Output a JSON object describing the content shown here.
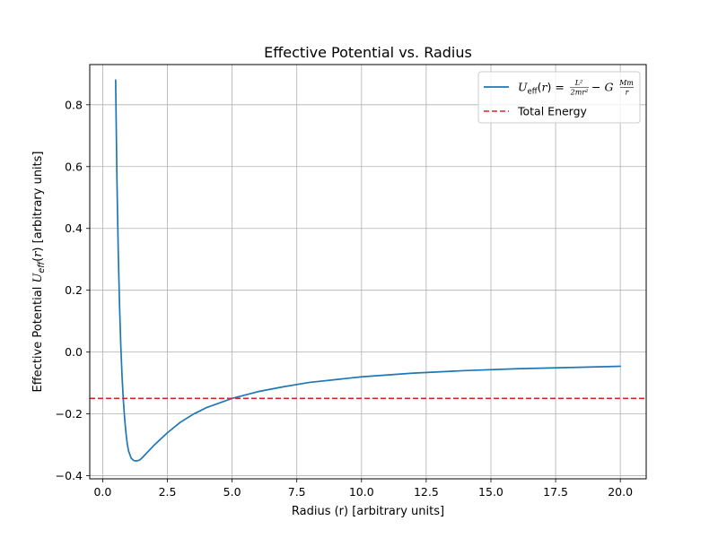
{
  "chart_data": {
    "type": "line",
    "title": "Effective Potential vs. Radius",
    "xlabel": "Radius (r) [arbitrary units]",
    "ylabel": "Effective Potential U_eff(r) [arbitrary units]",
    "xlim": [
      -0.5,
      21.0
    ],
    "ylim": [
      -0.41,
      0.93
    ],
    "x_ticks": [
      0.0,
      2.5,
      5.0,
      7.5,
      10.0,
      12.5,
      15.0,
      17.5,
      20.0
    ],
    "x_tick_labels": [
      "0.0",
      "2.5",
      "5.0",
      "7.5",
      "10.0",
      "12.5",
      "15.0",
      "17.5",
      "20.0"
    ],
    "y_ticks": [
      -0.4,
      -0.2,
      0.0,
      0.2,
      0.4,
      0.6,
      0.8
    ],
    "y_tick_labels": [
      "−0.4",
      "−0.2",
      "0.0",
      "0.2",
      "0.4",
      "0.6",
      "0.8"
    ],
    "grid": true,
    "legend_position": "top-right",
    "series": [
      {
        "name": "U_eff(r) = L²/(2mr²) − G Mm/r",
        "color": "#1f77b4",
        "style": "solid",
        "x": [
          0.5,
          0.55,
          0.6,
          0.65,
          0.7,
          0.75,
          0.8,
          0.85,
          0.9,
          0.95,
          1.0,
          1.1,
          1.2,
          1.3,
          1.41,
          1.5,
          1.75,
          2.0,
          2.5,
          3.0,
          3.5,
          4.0,
          5.0,
          6.0,
          7.0,
          8.0,
          10.0,
          12.0,
          14.0,
          16.0,
          18.0,
          20.0
        ],
        "y": [
          0.88,
          0.562,
          0.33,
          0.155,
          0.02,
          -0.082,
          -0.158,
          -0.217,
          -0.262,
          -0.297,
          -0.32,
          -0.343,
          -0.351,
          -0.352,
          -0.35,
          -0.344,
          -0.322,
          -0.3,
          -0.261,
          -0.227,
          -0.201,
          -0.18,
          -0.15,
          -0.128,
          -0.112,
          -0.098,
          -0.08,
          -0.068,
          -0.06,
          -0.054,
          -0.05,
          -0.046
        ]
      },
      {
        "name": "Total Energy",
        "color": "#d62728",
        "style": "dashed",
        "x": [
          -0.5,
          21.0
        ],
        "y": [
          -0.15,
          -0.15
        ]
      }
    ]
  }
}
